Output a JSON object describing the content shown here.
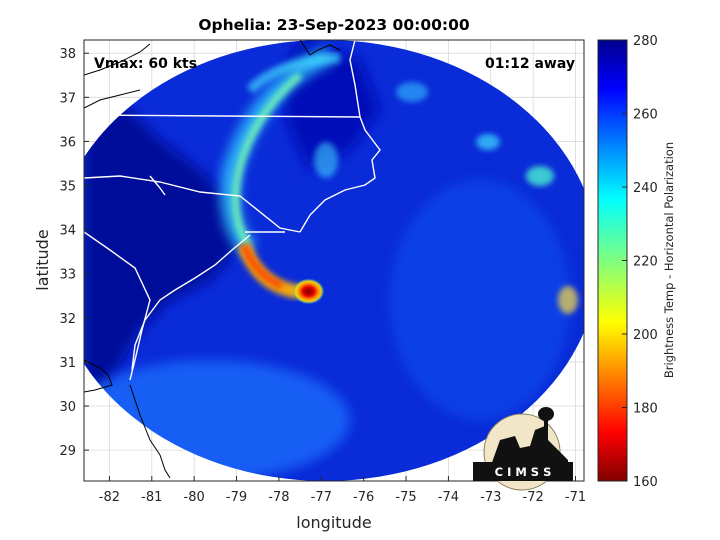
{
  "chart_data": {
    "type": "heatmap",
    "title": "Ophelia: 23-Sep-2023 00:00:00",
    "xlabel": "longitude",
    "ylabel": "latitude",
    "xlim": [
      -82.6,
      -70.8
    ],
    "ylim": [
      28.3,
      38.3
    ],
    "x_ticks": [
      -82,
      -81,
      -80,
      -79,
      -78,
      -77,
      -76,
      -75,
      -74,
      -73,
      -72,
      -71
    ],
    "y_ticks": [
      29,
      30,
      31,
      32,
      33,
      34,
      35,
      36,
      37,
      38
    ],
    "grid": true,
    "annotation_left": "Vmax: 60 kts",
    "annotation_right": "01:12 away",
    "storm_center": {
      "lon": -77.3,
      "lat": 32.6
    },
    "swath": {
      "center_lon": -76.9,
      "center_lat": 33.3,
      "radius_deg_lon": 6.45,
      "radius_deg_lat": 5.0
    },
    "colorbar": {
      "label": "Brightness Temp - Horizontal Polarization",
      "min": 160,
      "max": 280,
      "ticks": [
        160,
        180,
        200,
        220,
        240,
        260,
        280
      ],
      "colormap": "jet"
    },
    "logo_text": "C I M S S"
  },
  "colors": {
    "background": "#00008f",
    "axis": "#262626",
    "grid": "#d8d8d8"
  }
}
